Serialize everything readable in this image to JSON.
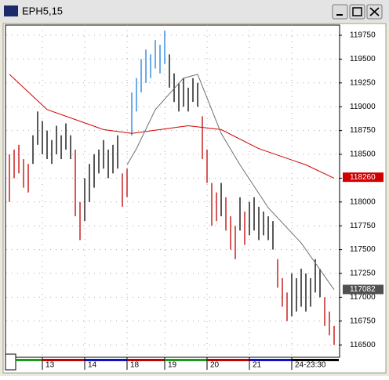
{
  "chart_data": {
    "type": "ohlc",
    "title": "EPH5,15",
    "x": [
      0,
      1,
      2,
      3,
      4,
      5,
      6,
      7,
      8,
      9,
      10,
      11,
      12,
      13,
      14,
      15,
      16,
      17,
      18,
      19,
      20,
      21,
      22,
      23,
      24,
      25,
      26,
      27,
      28,
      29,
      30,
      31,
      32,
      33,
      34,
      35,
      36,
      37,
      38,
      39,
      40,
      41,
      42,
      43,
      44,
      45,
      46,
      47,
      48,
      49,
      50,
      51,
      52,
      53,
      54,
      55,
      56,
      57,
      58,
      59,
      60,
      61,
      62,
      63,
      64,
      65,
      66,
      67,
      68,
      69
    ],
    "high": [
      118500,
      118550,
      118600,
      118450,
      118400,
      118700,
      118950,
      118850,
      118750,
      118650,
      118800,
      118700,
      118825,
      118700,
      118550,
      118000,
      118250,
      118400,
      118500,
      118550,
      118650,
      118550,
      118600,
      118700,
      118300,
      118350,
      119150,
      119300,
      119500,
      119600,
      119550,
      119700,
      119650,
      119800,
      119550,
      119350,
      119250,
      119300,
      119200,
      119300,
      119250,
      118900,
      118550,
      118200,
      118100,
      118200,
      118050,
      117850,
      117750,
      118050,
      117900,
      118000,
      118050,
      117950,
      117900,
      117850,
      117800,
      117400,
      117200,
      117050,
      117250,
      117200,
      117300,
      117250,
      117200,
      117400,
      117300,
      117000,
      116850,
      116700
    ],
    "low": [
      118000,
      118250,
      118300,
      118150,
      118100,
      118400,
      118600,
      118500,
      118450,
      118400,
      118500,
      118450,
      118550,
      118450,
      117850,
      117600,
      117800,
      118000,
      118150,
      118300,
      118350,
      118250,
      118300,
      118350,
      117950,
      118050,
      118700,
      118950,
      119150,
      119250,
      119300,
      119400,
      119350,
      119450,
      119200,
      119050,
      118950,
      119000,
      118950,
      119050,
      119000,
      118450,
      118200,
      117750,
      117800,
      117850,
      117700,
      117500,
      117400,
      117700,
      117550,
      117650,
      117700,
      117600,
      117650,
      117600,
      117500,
      117100,
      116900,
      116750,
      116800,
      116850,
      116900,
      116850,
      116900,
      117050,
      117000,
      116700,
      116600,
      116500
    ],
    "colors": [
      "#c00000",
      "#c00000",
      "#c00000",
      "#c00000",
      "#c00000",
      "#000000",
      "#000000",
      "#000000",
      "#000000",
      "#000000",
      "#000000",
      "#000000",
      "#000000",
      "#000000",
      "#c00000",
      "#c00000",
      "#000000",
      "#000000",
      "#000000",
      "#000000",
      "#000000",
      "#000000",
      "#000000",
      "#000000",
      "#c00000",
      "#c00000",
      "#1e7fd8",
      "#1e7fd8",
      "#1e7fd8",
      "#1e7fd8",
      "#1e7fd8",
      "#1e7fd8",
      "#1e7fd8",
      "#1e7fd8",
      "#000000",
      "#000000",
      "#000000",
      "#000000",
      "#000000",
      "#000000",
      "#000000",
      "#c00000",
      "#c00000",
      "#c00000",
      "#c00000",
      "#000000",
      "#c00000",
      "#c00000",
      "#c00000",
      "#000000",
      "#c00000",
      "#000000",
      "#000000",
      "#000000",
      "#000000",
      "#000000",
      "#000000",
      "#c00000",
      "#c00000",
      "#c00000",
      "#000000",
      "#000000",
      "#000000",
      "#000000",
      "#000000",
      "#000000",
      "#000000",
      "#c00000",
      "#c00000",
      "#c00000"
    ],
    "lines": [
      {
        "color": "#d00000",
        "x": [
          0,
          8,
          20,
          26,
          38,
          45,
          53,
          63,
          69
        ],
        "values": [
          119340,
          118970,
          118760,
          118720,
          118800,
          118760,
          118560,
          118390,
          118250
        ]
      },
      {
        "color": "#707070",
        "x": [
          25,
          27,
          31,
          37,
          40,
          45,
          49,
          55,
          62,
          69
        ],
        "values": [
          118390,
          118560,
          118970,
          119300,
          119340,
          118720,
          118390,
          117940,
          117570,
          117080
        ]
      }
    ],
    "markers": [
      {
        "value": 118260,
        "color": "#d00000"
      },
      {
        "value": 117082,
        "color": "#505050"
      }
    ],
    "xlim": [
      -0.67,
      70
    ],
    "ylim": [
      116370,
      119857
    ],
    "yticks": [
      116500,
      116750,
      117000,
      117250,
      117500,
      117750,
      118000,
      118250,
      118500,
      118750,
      119000,
      119250,
      119500,
      119750
    ],
    "xticks": [
      {
        "value": 7,
        "label": "13"
      },
      {
        "value": 16,
        "label": "14"
      },
      {
        "value": 25,
        "label": "18"
      },
      {
        "value": 33,
        "label": "19"
      },
      {
        "value": 42,
        "label": "20"
      },
      {
        "value": 51,
        "label": "21"
      },
      {
        "value": 60,
        "label": "24-23:30"
      }
    ],
    "grid": true
  }
}
